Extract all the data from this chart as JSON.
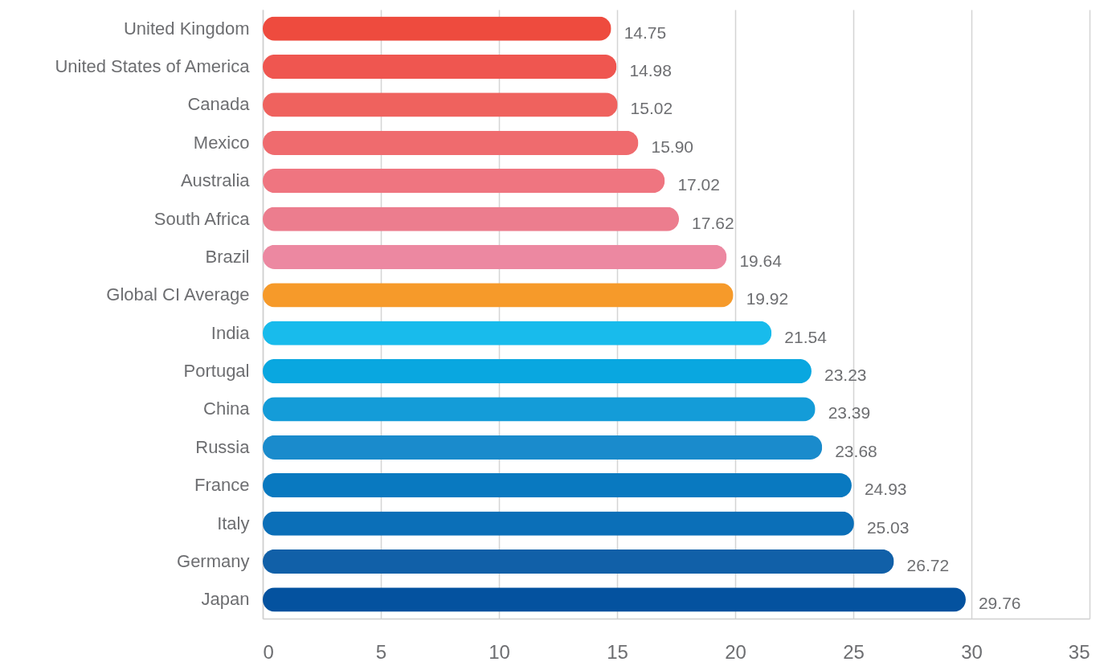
{
  "chart_data": {
    "type": "bar",
    "orientation": "horizontal",
    "categories": [
      "United Kingdom",
      "United States of America",
      "Canada",
      "Mexico",
      "Australia",
      "South Africa",
      "Brazil",
      "Global CI Average",
      "India",
      "Portugal",
      "China",
      "Russia",
      "France",
      "Italy",
      "Germany",
      "Japan"
    ],
    "values": [
      14.75,
      14.98,
      15.02,
      15.9,
      17.02,
      17.62,
      19.64,
      19.92,
      21.54,
      23.23,
      23.39,
      23.68,
      24.93,
      25.03,
      26.72,
      29.76
    ],
    "value_labels": [
      "14.75",
      "14.98",
      "15.02",
      "15.90",
      "17.02",
      "17.62",
      "19.64",
      "19.92",
      "21.54",
      "23.23",
      "23.39",
      "23.68",
      "24.93",
      "25.03",
      "26.72",
      "29.76"
    ],
    "colors": [
      "#ee4b3e",
      "#ef5650",
      "#ef625e",
      "#ef6b6e",
      "#ef7580",
      "#ec7d8e",
      "#ec88a1",
      "#f69a2a",
      "#18bbec",
      "#09a7e0",
      "#149cd8",
      "#1a8bcc",
      "#0979c0",
      "#0b6fb8",
      "#1160a8",
      "#04529f"
    ],
    "xlim": [
      0,
      35
    ],
    "xticks": [
      0,
      5,
      10,
      15,
      20,
      25,
      30,
      35
    ],
    "grid": "x"
  }
}
